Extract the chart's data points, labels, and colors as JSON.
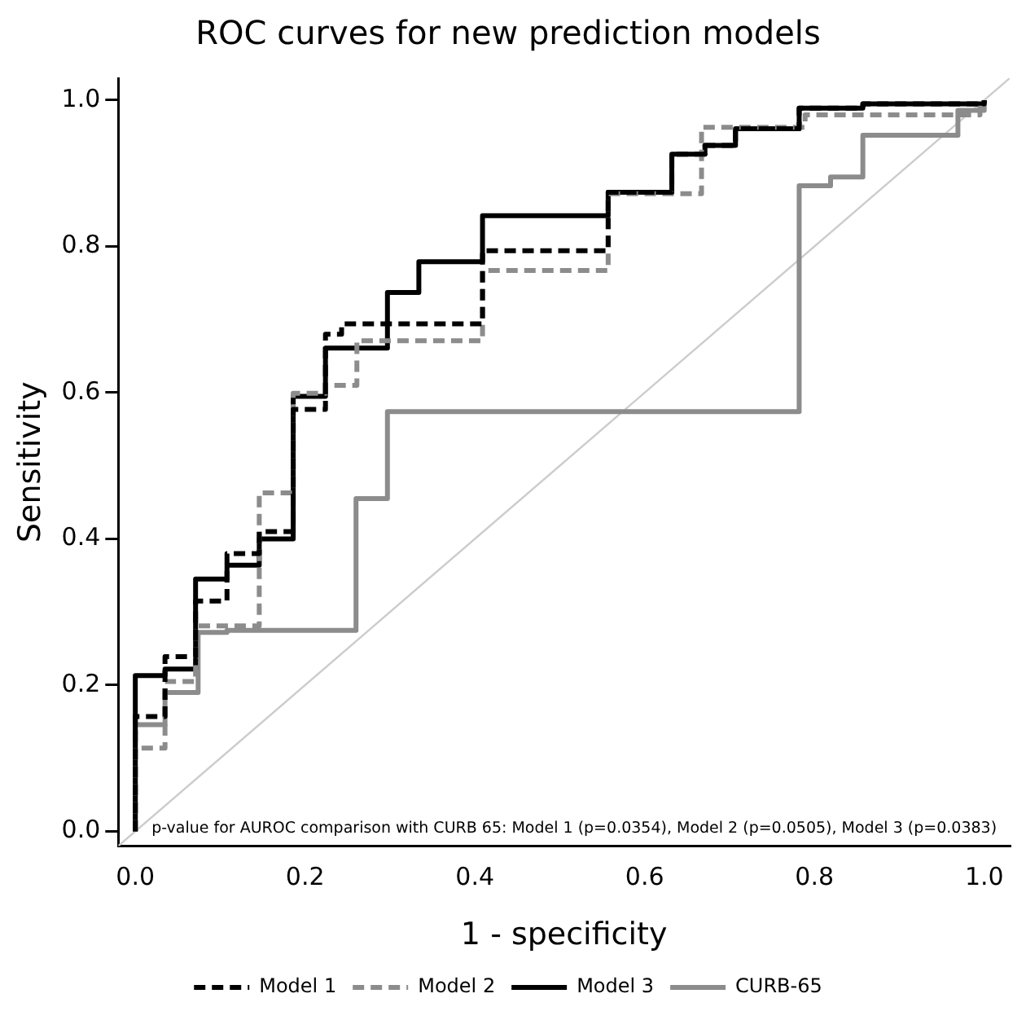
{
  "chart_data": {
    "type": "step",
    "title": "ROC curves for new prediction models",
    "xlabel": "1 - specificity",
    "ylabel": "Sensitivity",
    "xlim": [
      -0.02,
      1.03
    ],
    "ylim": [
      -0.02,
      1.03
    ],
    "xticks": [
      {
        "value": 0,
        "label": "0.0"
      },
      {
        "value": 0.2,
        "label": "0.2"
      },
      {
        "value": 0.4,
        "label": "0.4"
      },
      {
        "value": 0.6,
        "label": "0.6"
      },
      {
        "value": 0.8,
        "label": "0.8"
      },
      {
        "value": 1,
        "label": "1.0"
      }
    ],
    "yticks": [
      {
        "value": 0,
        "label": "0.0"
      },
      {
        "value": 0.2,
        "label": "0.2"
      },
      {
        "value": 0.4,
        "label": "0.4"
      },
      {
        "value": 0.6,
        "label": "0.6"
      },
      {
        "value": 0.8,
        "label": "0.8"
      },
      {
        "value": 1,
        "label": "1.0"
      }
    ],
    "grid": false,
    "legend": "bottom",
    "marker": "none",
    "annotations": [
      "p-value for AUROC comparison with CURB 65: Model 1 (p=0.0354), Model 2 (p=0.0505), Model 3 (p=0.0383)"
    ],
    "series": [
      {
        "name": "Model 1",
        "color": "#000000",
        "line_style": "dashed",
        "x": [
          0,
          0,
          0.035,
          0.071,
          0.108,
          0.146,
          0.186,
          0.224,
          0.243,
          0.409,
          0.557,
          0.632,
          0.671,
          0.707,
          0.782,
          0.857,
          1
        ],
        "values": [
          0,
          0.157,
          0.239,
          0.315,
          0.38,
          0.41,
          0.577,
          0.68,
          0.694,
          0.794,
          0.874,
          0.926,
          0.938,
          0.961,
          0.989,
          0.995,
          1
        ]
      },
      {
        "name": "Model 2",
        "color": "#8c8c8c",
        "line_style": "dashed",
        "x": [
          0,
          0,
          0.035,
          0.071,
          0.146,
          0.186,
          0.224,
          0.261,
          0.409,
          0.557,
          0.667,
          0.789,
          0.995
        ],
        "values": [
          0,
          0.114,
          0.205,
          0.281,
          0.463,
          0.599,
          0.61,
          0.671,
          0.767,
          0.872,
          0.963,
          0.98,
          1
        ]
      },
      {
        "name": "Model 3",
        "color": "#000000",
        "line_style": "solid",
        "x": [
          0,
          0,
          0.035,
          0.071,
          0.108,
          0.146,
          0.186,
          0.224,
          0.297,
          0.334,
          0.409,
          0.557,
          0.632,
          0.671,
          0.707,
          0.782,
          0.857,
          1
        ],
        "values": [
          0,
          0.213,
          0.222,
          0.345,
          0.364,
          0.4,
          0.595,
          0.661,
          0.737,
          0.779,
          0.842,
          0.874,
          0.926,
          0.938,
          0.961,
          0.989,
          0.995,
          1
        ]
      },
      {
        "name": "CURB-65",
        "color": "#8c8c8c",
        "line_style": "solid",
        "x": [
          0,
          0,
          0.035,
          0.074,
          0.108,
          0.26,
          0.297,
          0.782,
          0.819,
          0.857,
          0.969,
          1
        ],
        "values": [
          0,
          0.146,
          0.19,
          0.272,
          0.275,
          0.455,
          0.574,
          0.883,
          0.895,
          0.952,
          0.986,
          1
        ]
      },
      {
        "type": "line",
        "color": "#cccccc",
        "line_style": "solid",
        "x": [
          -0.02,
          1.03
        ],
        "values": [
          -0.02,
          1.03
        ]
      }
    ]
  }
}
